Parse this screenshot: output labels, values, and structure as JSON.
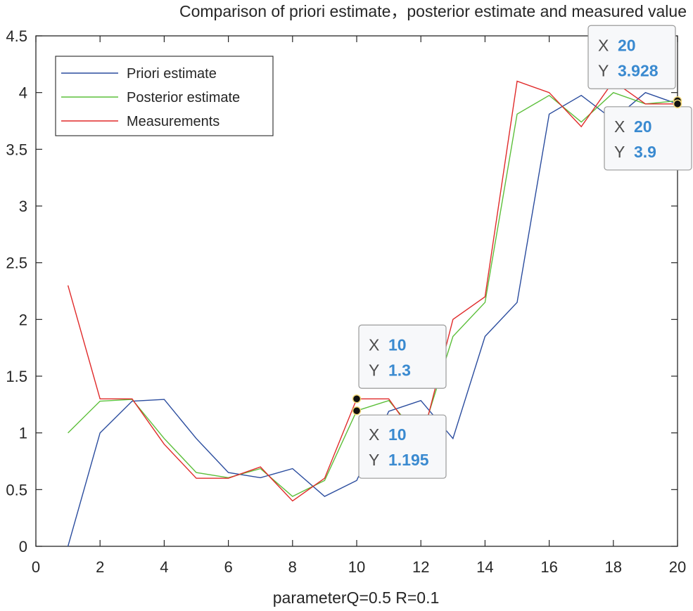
{
  "chart_data": {
    "type": "line",
    "title": "Comparison of priori estimate，posterior estimate and measured value",
    "xlabel": "parameterQ=0.5 R=0.1",
    "ylabel": "",
    "xlim": [
      0,
      20
    ],
    "ylim": [
      0,
      4.5
    ],
    "x_ticks": [
      "0",
      "2",
      "4",
      "6",
      "8",
      "10",
      "12",
      "14",
      "16",
      "18",
      "20"
    ],
    "y_ticks": [
      "0",
      "0.5",
      "1",
      "1.5",
      "2",
      "2.5",
      "3",
      "3.5",
      "4",
      "4.5"
    ],
    "grid": false,
    "legend_position": "top-left",
    "x": [
      1,
      2,
      3,
      4,
      5,
      6,
      7,
      8,
      9,
      10,
      11,
      12,
      13,
      14,
      15,
      16,
      17,
      18,
      19,
      20
    ],
    "series": [
      {
        "name": "Priori estimate",
        "color": "#2a4c9e",
        "values": [
          0,
          1.0,
          1.28,
          1.295,
          0.95,
          0.65,
          0.605,
          0.685,
          0.44,
          0.58,
          1.19,
          1.285,
          0.95,
          1.85,
          2.15,
          3.81,
          3.975,
          3.76,
          4.0,
          3.9
        ]
      },
      {
        "name": "Posterior estimate",
        "color": "#5cbf3a",
        "values": [
          1.0,
          1.28,
          1.295,
          0.95,
          0.65,
          0.605,
          0.685,
          0.44,
          0.58,
          1.195,
          1.285,
          0.95,
          1.85,
          2.15,
          3.81,
          3.975,
          3.74,
          4.0,
          3.9,
          3.928
        ]
      },
      {
        "name": "Measurements",
        "color": "#e02a2a",
        "values": [
          2.3,
          1.3,
          1.3,
          0.9,
          0.6,
          0.6,
          0.7,
          0.4,
          0.6,
          1.3,
          1.3,
          0.9,
          2.0,
          2.2,
          4.1,
          4.0,
          3.7,
          4.1,
          3.9,
          3.9
        ]
      }
    ],
    "datatips": [
      {
        "x": 10,
        "y": 1.3,
        "x_label": "X",
        "x_text": "10",
        "y_label": "Y",
        "y_text": "1.3",
        "placement": "above"
      },
      {
        "x": 10,
        "y": 1.195,
        "x_label": "X",
        "x_text": "10",
        "y_label": "Y",
        "y_text": "1.195",
        "placement": "below"
      },
      {
        "x": 20,
        "y": 3.928,
        "x_label": "X",
        "x_text": "20",
        "y_label": "Y",
        "y_text": "3.928",
        "placement": "above-left"
      },
      {
        "x": 20,
        "y": 3.9,
        "x_label": "X",
        "x_text": "20",
        "y_label": "Y",
        "y_text": "3.9",
        "placement": "below-left"
      }
    ],
    "datatip_value_color": "#3a8ad0"
  }
}
